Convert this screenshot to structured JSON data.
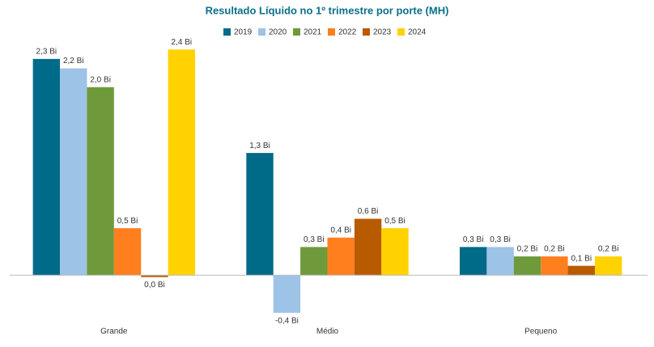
{
  "chart_data": {
    "type": "bar",
    "title": "Resultado Líquido no 1º trimestre  por porte (MH)",
    "categories": [
      "Grande",
      "Médio",
      "Pequeno"
    ],
    "series": [
      {
        "name": "2019",
        "color": "#006a89",
        "values": [
          2.3,
          1.3,
          0.3
        ],
        "value_labels": [
          "2,3 Bi",
          "1,3 Bi",
          "0,3 Bi"
        ]
      },
      {
        "name": "2020",
        "color": "#9dc3e6",
        "values": [
          2.2,
          -0.4,
          0.3
        ],
        "value_labels": [
          "2,2 Bi",
          "-0,4 Bi",
          "0,3 Bi"
        ]
      },
      {
        "name": "2021",
        "color": "#6e9a3c",
        "values": [
          2.0,
          0.3,
          0.2
        ],
        "value_labels": [
          "2,0 Bi",
          "0,3 Bi",
          "0,2 Bi"
        ]
      },
      {
        "name": "2022",
        "color": "#ff7f1e",
        "values": [
          0.5,
          0.4,
          0.2
        ],
        "value_labels": [
          "0,5 Bi",
          "0,4 Bi",
          "0,2 Bi"
        ]
      },
      {
        "name": "2023",
        "color": "#b85a00",
        "values": [
          -0.02,
          0.6,
          0.1
        ],
        "value_labels": [
          "0,0 Bi",
          "0,6 Bi",
          "0,1 Bi"
        ]
      },
      {
        "name": "2024",
        "color": "#ffd200",
        "values": [
          2.4,
          0.5,
          0.2
        ],
        "value_labels": [
          "2,4 Bi",
          "0,5 Bi",
          "0,2 Bi"
        ]
      }
    ],
    "ylim": [
      -0.6,
      2.6
    ]
  }
}
